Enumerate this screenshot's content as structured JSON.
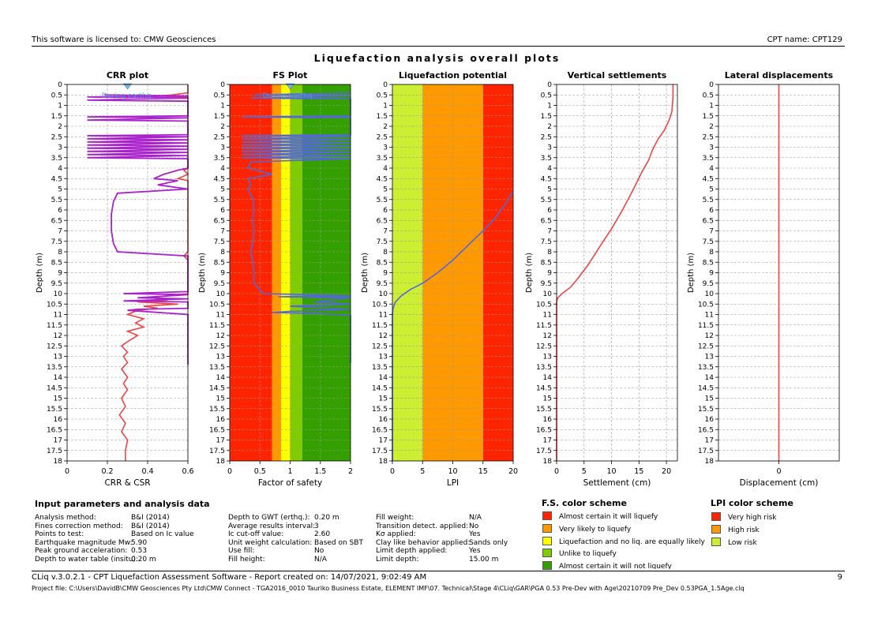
{
  "header": {
    "license": "This software is licensed to: CMW Geosciences",
    "cpt_name": "CPT name: CPT129",
    "main_title": "Liquefaction analysis overall plots"
  },
  "colors": {
    "red": "#ff2400",
    "orange": "#ff9900",
    "yellow": "#ffff00",
    "lightgreen": "#7fcc00",
    "green": "#33a000",
    "limegreen": "#ccee33",
    "crr_line": "#ee4444",
    "csr_line": "#aa22cc",
    "fs_line": "#5566dd",
    "settle_line": "#ee4444"
  },
  "chart_data": [
    {
      "type": "line",
      "title": "CRR plot",
      "xlabel": "CRR & CSR",
      "ylabel": "Depth (m)",
      "xlim": [
        0,
        0.6
      ],
      "xticks": [
        "0",
        "0.2",
        "0.4",
        "0.6"
      ],
      "ylim": [
        0,
        18
      ],
      "annotation": "During earthq.",
      "series": [
        {
          "role": "CRR",
          "points": [
            [
              0.6,
              0.0
            ],
            [
              0.6,
              0.4
            ],
            [
              0.52,
              0.5
            ],
            [
              0.45,
              0.55
            ],
            [
              0.6,
              0.6
            ],
            [
              0.6,
              4.0
            ],
            [
              0.58,
              4.1
            ],
            [
              0.6,
              4.3
            ],
            [
              0.55,
              4.5
            ],
            [
              0.6,
              4.6
            ],
            [
              0.6,
              7.8
            ],
            [
              0.6,
              8.0
            ],
            [
              0.58,
              8.2
            ],
            [
              0.6,
              8.4
            ],
            [
              0.6,
              10.0
            ],
            [
              0.5,
              10.1
            ],
            [
              0.42,
              10.2
            ],
            [
              0.5,
              10.3
            ],
            [
              0.35,
              10.4
            ],
            [
              0.55,
              10.5
            ],
            [
              0.38,
              10.6
            ],
            [
              0.45,
              10.7
            ],
            [
              0.35,
              10.8
            ],
            [
              0.3,
              11.0
            ],
            [
              0.38,
              11.2
            ],
            [
              0.34,
              11.4
            ],
            [
              0.38,
              11.6
            ],
            [
              0.3,
              11.8
            ],
            [
              0.35,
              12.0
            ],
            [
              0.3,
              12.3
            ],
            [
              0.27,
              12.5
            ],
            [
              0.3,
              12.8
            ],
            [
              0.28,
              13.0
            ],
            [
              0.3,
              13.3
            ],
            [
              0.27,
              13.6
            ],
            [
              0.3,
              14.0
            ],
            [
              0.28,
              14.3
            ],
            [
              0.3,
              14.6
            ],
            [
              0.27,
              15.0
            ],
            [
              0.29,
              15.4
            ],
            [
              0.26,
              15.8
            ],
            [
              0.29,
              16.2
            ],
            [
              0.27,
              16.6
            ],
            [
              0.3,
              17.0
            ],
            [
              0.29,
              17.5
            ],
            [
              0.29,
              18.0
            ]
          ]
        },
        {
          "role": "CSR",
          "points": [
            [
              0.19,
              0.45
            ],
            [
              0.19,
              0.5
            ],
            [
              0.6,
              0.55
            ],
            [
              0.1,
              0.6
            ],
            [
              0.6,
              0.65
            ],
            [
              0.1,
              0.75
            ],
            [
              0.6,
              0.8
            ],
            [
              0.6,
              1.5
            ],
            [
              0.1,
              1.55
            ],
            [
              0.6,
              1.6
            ],
            [
              0.1,
              1.7
            ],
            [
              0.6,
              1.75
            ],
            [
              0.6,
              2.4
            ],
            [
              0.1,
              2.45
            ],
            [
              0.6,
              2.5
            ],
            [
              0.1,
              2.6
            ],
            [
              0.6,
              2.65
            ],
            [
              0.1,
              2.75
            ],
            [
              0.6,
              2.8
            ],
            [
              0.1,
              2.9
            ],
            [
              0.6,
              2.95
            ],
            [
              0.1,
              3.05
            ],
            [
              0.6,
              3.1
            ],
            [
              0.1,
              3.2
            ],
            [
              0.6,
              3.25
            ],
            [
              0.1,
              3.35
            ],
            [
              0.6,
              3.4
            ],
            [
              0.1,
              3.5
            ],
            [
              0.6,
              3.55
            ],
            [
              0.6,
              4.0
            ],
            [
              0.55,
              4.1
            ],
            [
              0.48,
              4.3
            ],
            [
              0.43,
              4.5
            ],
            [
              0.55,
              4.6
            ],
            [
              0.45,
              4.8
            ],
            [
              0.6,
              5.0
            ],
            [
              0.25,
              5.2
            ],
            [
              0.23,
              5.6
            ],
            [
              0.22,
              6.2
            ],
            [
              0.22,
              7.0
            ],
            [
              0.23,
              7.6
            ],
            [
              0.25,
              8.0
            ],
            [
              0.6,
              8.2
            ],
            [
              0.6,
              9.9
            ],
            [
              0.28,
              10.0
            ],
            [
              0.6,
              10.05
            ],
            [
              0.35,
              10.2
            ],
            [
              0.6,
              10.25
            ],
            [
              0.28,
              10.35
            ],
            [
              0.6,
              10.4
            ],
            [
              0.6,
              10.7
            ],
            [
              0.35,
              10.75
            ],
            [
              0.3,
              10.8
            ],
            [
              0.6,
              11.0
            ],
            [
              0.6,
              13.3
            ],
            [
              0.6,
              13.4
            ]
          ]
        }
      ]
    },
    {
      "type": "line",
      "title": "FS Plot",
      "xlabel": "Factor of safety",
      "ylabel": "Depth (m)",
      "xlim": [
        0,
        2
      ],
      "xticks": [
        "0",
        "0.5",
        "1",
        "1.5",
        "2"
      ],
      "ylim": [
        0,
        18
      ],
      "annotation": "During earthq.",
      "bands": [
        {
          "from": 0,
          "to": 0.7,
          "color": "#ff2400"
        },
        {
          "from": 0.7,
          "to": 0.85,
          "color": "#ff9900"
        },
        {
          "from": 0.85,
          "to": 1.0,
          "color": "#ffff00"
        },
        {
          "from": 1.0,
          "to": 1.2,
          "color": "#7fcc00"
        },
        {
          "from": 1.2,
          "to": 2.0,
          "color": "#33a000"
        }
      ],
      "series": [
        {
          "role": "FS",
          "points": [
            [
              2.0,
              0.4
            ],
            [
              0.4,
              0.5
            ],
            [
              2.0,
              0.55
            ],
            [
              0.35,
              0.65
            ],
            [
              2.0,
              0.7
            ],
            [
              2.0,
              1.5
            ],
            [
              0.2,
              1.55
            ],
            [
              2.0,
              1.6
            ],
            [
              2.0,
              2.4
            ],
            [
              0.2,
              2.45
            ],
            [
              2.0,
              2.5
            ],
            [
              0.2,
              2.6
            ],
            [
              2.0,
              2.65
            ],
            [
              0.2,
              2.75
            ],
            [
              2.0,
              2.8
            ],
            [
              0.2,
              2.9
            ],
            [
              2.0,
              2.95
            ],
            [
              0.2,
              3.05
            ],
            [
              2.0,
              3.1
            ],
            [
              0.2,
              3.2
            ],
            [
              2.0,
              3.25
            ],
            [
              0.2,
              3.35
            ],
            [
              2.0,
              3.4
            ],
            [
              0.2,
              3.5
            ],
            [
              2.0,
              3.55
            ],
            [
              0.35,
              3.7
            ],
            [
              0.3,
              4.0
            ],
            [
              0.45,
              4.1
            ],
            [
              0.7,
              4.3
            ],
            [
              0.3,
              4.5
            ],
            [
              0.35,
              4.8
            ],
            [
              0.3,
              5.0
            ],
            [
              0.38,
              5.5
            ],
            [
              0.4,
              6.0
            ],
            [
              0.38,
              6.5
            ],
            [
              0.4,
              7.0
            ],
            [
              0.38,
              7.5
            ],
            [
              0.35,
              8.0
            ],
            [
              0.38,
              8.5
            ],
            [
              0.4,
              9.0
            ],
            [
              0.4,
              9.5
            ],
            [
              0.55,
              10.0
            ],
            [
              2.0,
              10.1
            ],
            [
              0.8,
              10.15
            ],
            [
              2.0,
              10.2
            ],
            [
              1.4,
              10.4
            ],
            [
              2.0,
              10.5
            ],
            [
              1.0,
              10.6
            ],
            [
              2.0,
              10.75
            ],
            [
              1.0,
              10.85
            ],
            [
              0.7,
              10.9
            ],
            [
              1.5,
              10.95
            ],
            [
              2.0,
              11.05
            ],
            [
              2.0,
              13.3
            ]
          ]
        }
      ]
    },
    {
      "type": "line",
      "title": "Liquefaction potential",
      "xlabel": "LPI",
      "ylabel": "Depth (m)",
      "xlim": [
        0,
        20
      ],
      "xticks": [
        "0",
        "5",
        "10",
        "15",
        "20"
      ],
      "ylim": [
        0,
        18
      ],
      "bands": [
        {
          "from": 0,
          "to": 5,
          "color": "#ccee33"
        },
        {
          "from": 5,
          "to": 15,
          "color": "#ff9900"
        },
        {
          "from": 15,
          "to": 20,
          "color": "#ff2400"
        }
      ],
      "series": [
        {
          "role": "LPI",
          "points": [
            [
              20,
              5.1
            ],
            [
              18.5,
              5.8
            ],
            [
              17,
              6.4
            ],
            [
              15,
              7.0
            ],
            [
              12.5,
              7.7
            ],
            [
              10,
              8.4
            ],
            [
              7.5,
              9.0
            ],
            [
              5,
              9.5
            ],
            [
              3,
              9.8
            ],
            [
              1.5,
              10.1
            ],
            [
              0.5,
              10.4
            ],
            [
              0.1,
              10.7
            ],
            [
              0,
              11.0
            ],
            [
              0,
              18
            ]
          ]
        }
      ]
    },
    {
      "type": "line",
      "title": "Vertical settlements",
      "xlabel": "Settlement (cm)",
      "ylabel": "Depth (m)",
      "xlim": [
        0,
        22
      ],
      "xticks": [
        "0",
        "5",
        "10",
        "15",
        "20"
      ],
      "ylim": [
        0,
        18
      ],
      "series": [
        {
          "role": "settlement",
          "points": [
            [
              21.2,
              0.0
            ],
            [
              21.2,
              0.6
            ],
            [
              21.0,
              1.3
            ],
            [
              20.5,
              1.7
            ],
            [
              19.6,
              2.2
            ],
            [
              18.5,
              2.6
            ],
            [
              17.5,
              3.1
            ],
            [
              16.8,
              3.6
            ],
            [
              15.5,
              4.2
            ],
            [
              14.0,
              5.0
            ],
            [
              12.0,
              6.0
            ],
            [
              10.0,
              6.9
            ],
            [
              8.0,
              7.7
            ],
            [
              5.8,
              8.6
            ],
            [
              3.8,
              9.3
            ],
            [
              2.5,
              9.7
            ],
            [
              1.0,
              10.0
            ],
            [
              0.2,
              10.2
            ],
            [
              0,
              10.4
            ],
            [
              0,
              18
            ]
          ]
        }
      ]
    },
    {
      "type": "line",
      "title": "Lateral displacements",
      "xlabel": "Displacement (cm)",
      "ylabel": "Depth (m)",
      "xlim": [
        -1,
        1
      ],
      "xticks": [
        "0"
      ],
      "ylim": [
        0,
        18
      ],
      "series": [
        {
          "role": "displacement",
          "points": [
            [
              0,
              0
            ],
            [
              0,
              18
            ]
          ]
        }
      ]
    }
  ],
  "params": {
    "title": "Input parameters and analysis data",
    "col1": [
      {
        "label": "Analysis method:",
        "value": "B&I (2014)"
      },
      {
        "label": "Fines correction method:",
        "value": "B&I (2014)"
      },
      {
        "label": "Points to test:",
        "value": "Based on Ic value"
      },
      {
        "label": "Earthquake magnitude Mw:",
        "value": "5.90"
      },
      {
        "label": "Peak ground acceleration:",
        "value": "0.53"
      },
      {
        "label": "Depth to water table (insitu):",
        "value": "0.20 m"
      }
    ],
    "col2": [
      {
        "label": "Depth to GWT (erthq.):",
        "value": "0.20 m"
      },
      {
        "label": "Average results interval:",
        "value": "3"
      },
      {
        "label": "Ic cut-off value:",
        "value": "2.60"
      },
      {
        "label": "Unit weight calculation:",
        "value": "Based on SBT"
      },
      {
        "label": "Use fill:",
        "value": "No"
      },
      {
        "label": "Fill height:",
        "value": "N/A"
      }
    ],
    "col3": [
      {
        "label": "Fill weight:",
        "value": "N/A"
      },
      {
        "label": "Transition detect. applied:",
        "value": "No"
      },
      {
        "label": "Kσ applied:",
        "value": "Yes"
      },
      {
        "label": "Clay like behavior applied:",
        "value": "Sands only"
      },
      {
        "label": "Limit depth applied:",
        "value": "Yes"
      },
      {
        "label": "Limit depth:",
        "value": "15.00 m"
      }
    ]
  },
  "fs_scheme": {
    "title": "F.S. color scheme",
    "items": [
      {
        "label": "Almost certain it will liquefy",
        "color": "#ff2400"
      },
      {
        "label": "Very likely to liquefy",
        "color": "#ff9900"
      },
      {
        "label": "Liquefaction and no liq. are equally likely",
        "color": "#ffff00"
      },
      {
        "label": "Unlike to liquefy",
        "color": "#7fcc00"
      },
      {
        "label": "Almost certain it will not liquefy",
        "color": "#33a000"
      }
    ]
  },
  "lpi_scheme": {
    "title": "LPI color scheme",
    "items": [
      {
        "label": "Very high risk",
        "color": "#ff2400"
      },
      {
        "label": "High risk",
        "color": "#ff9900"
      },
      {
        "label": "Low risk",
        "color": "#ccee33"
      }
    ]
  },
  "footer": {
    "version": "CLiq v.3.0.2.1 - CPT Liquefaction Assessment Software - Report created on: 14/07/2021, 9:02:49 AM",
    "page": "9",
    "project_file": "Project file: C:\\Users\\DavidB\\CMW Geosciences Pty Ltd\\CMW Connect - TGA2016_0010 Tauriko Business Estate, ELEMENT IMF\\07. Technical\\Stage 4\\CLiq\\GAR\\PGA 0.53 Pre-Dev with Age\\20210709 Pre_Dev 0.53PGA_1.5Age.clq"
  }
}
